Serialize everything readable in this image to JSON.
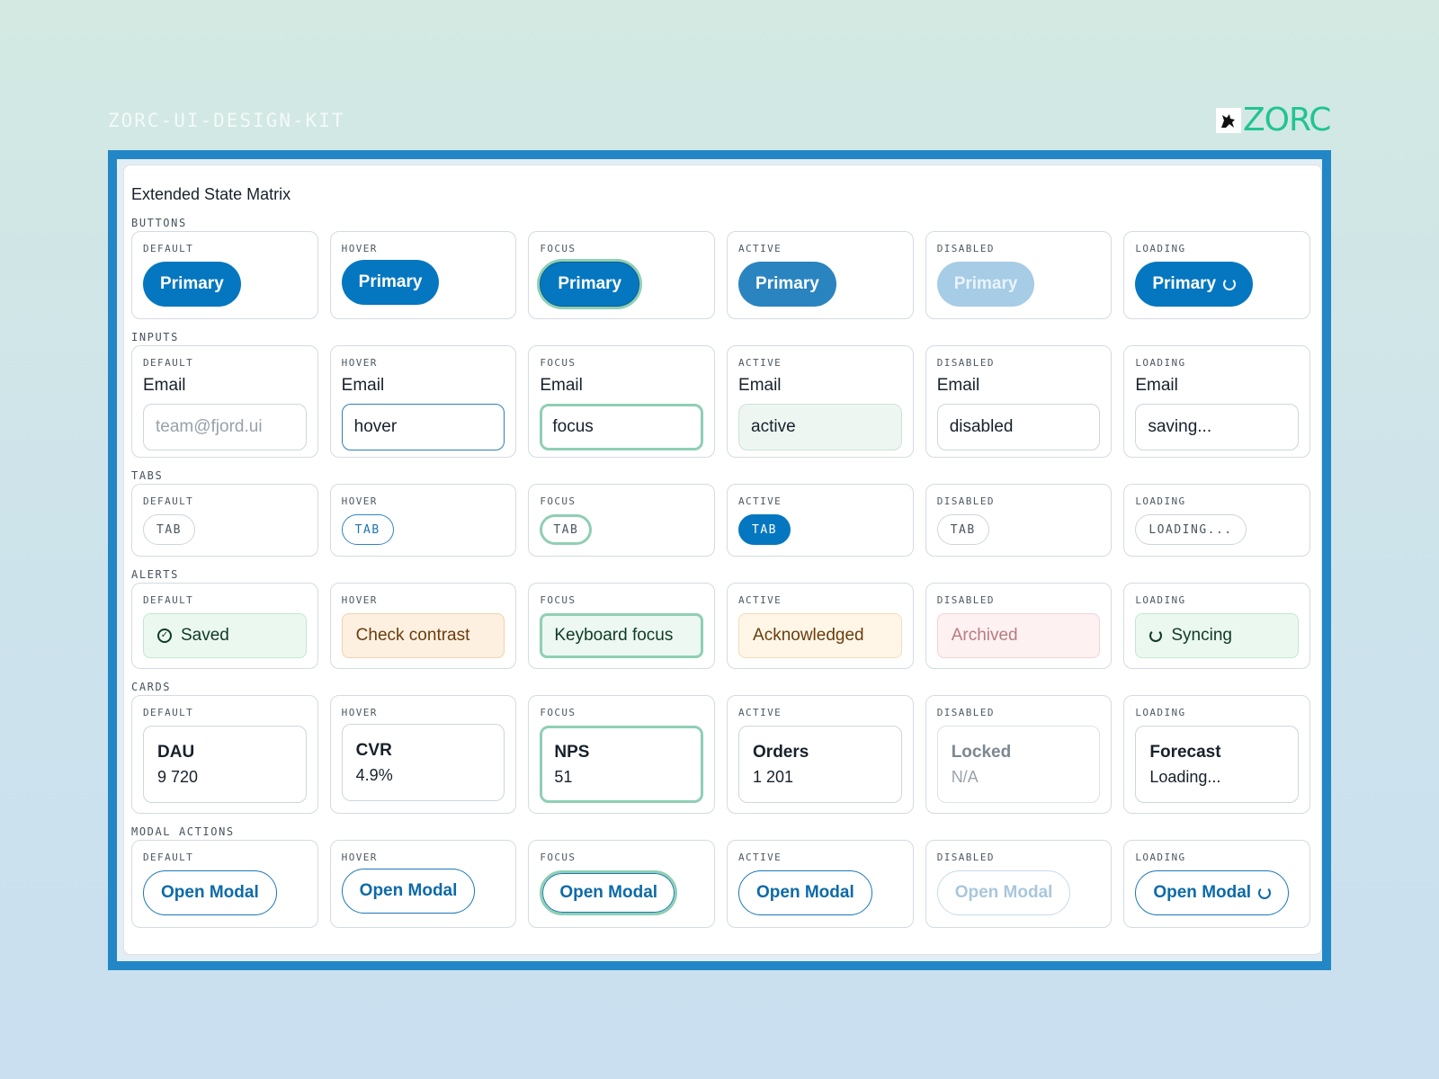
{
  "header": {
    "kit_title": "ZORC-UI-DESIGN-KIT",
    "brand": "ZORC"
  },
  "panel": {
    "title": "Extended State Matrix"
  },
  "states": [
    "DEFAULT",
    "HOVER",
    "FOCUS",
    "ACTIVE",
    "DISABLED",
    "LOADING"
  ],
  "buttons": {
    "label": "BUTTONS",
    "text": "Primary"
  },
  "inputs": {
    "label": "INPUTS",
    "field_label": "Email",
    "placeholder": "team@fjord.ui",
    "values": [
      "hover",
      "focus",
      "active",
      "disabled",
      "saving..."
    ]
  },
  "tabs": {
    "label": "TABS",
    "text": "TAB",
    "loading_text": "LOADING..."
  },
  "alerts": {
    "label": "ALERTS",
    "items": [
      "Saved",
      "Check contrast",
      "Keyboard focus",
      "Acknowledged",
      "Archived",
      "Syncing"
    ]
  },
  "cards": {
    "label": "CARDS",
    "items": [
      {
        "title": "DAU",
        "value": "9 720"
      },
      {
        "title": "CVR",
        "value": "4.9%"
      },
      {
        "title": "NPS",
        "value": "51"
      },
      {
        "title": "Orders",
        "value": "1 201"
      },
      {
        "title": "Locked",
        "value": "N/A"
      },
      {
        "title": "Forecast",
        "value": "Loading..."
      }
    ]
  },
  "modal_actions": {
    "label": "MODAL ACTIONS",
    "text": "Open Modal"
  },
  "colors": {
    "primary": "#0577c0",
    "focus_ring": "#8fcfb4",
    "brand": "#21c490",
    "frame": "#2386c6"
  },
  "icons": {
    "alert_default": "check-circle-icon",
    "alert_loading": "sync-icon",
    "button_loading": "spinner-icon"
  }
}
